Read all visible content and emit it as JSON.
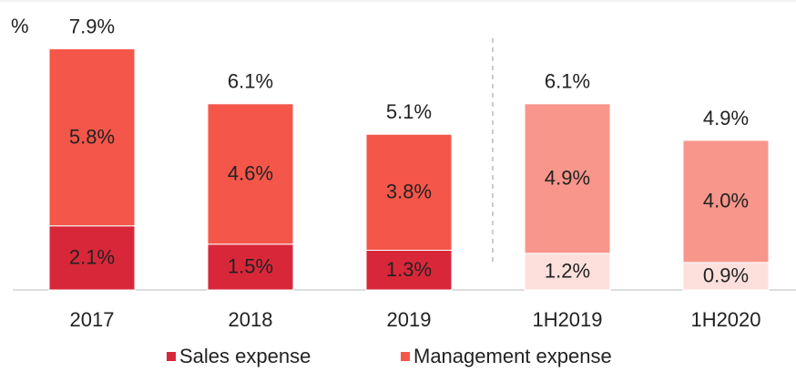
{
  "chart_data": {
    "type": "stacked_bar",
    "unit_label": "%",
    "categories": [
      "2017",
      "2018",
      "2019",
      "1H2019",
      "1H2020"
    ],
    "series": [
      {
        "name": "Sales expense",
        "color": [
          "#d9273a",
          "#d9273a",
          "#d9273a",
          "#fde0dc",
          "#fde0dc"
        ],
        "values": [
          2.1,
          1.5,
          1.3,
          1.2,
          0.9
        ],
        "value_labels": [
          "2.1%",
          "1.5%",
          "1.3%",
          "1.2%",
          "0.9%"
        ]
      },
      {
        "name": "Management expense",
        "color": [
          "#f5564a",
          "#f5564a",
          "#f5564a",
          "#f8968b",
          "#f8968b"
        ],
        "values": [
          5.8,
          4.6,
          3.8,
          4.9,
          4.0
        ],
        "value_labels": [
          "5.8%",
          "4.6%",
          "3.8%",
          "4.9%",
          "4.0%"
        ]
      }
    ],
    "totals": {
      "values": [
        7.9,
        6.1,
        5.1,
        6.1,
        4.9
      ],
      "value_labels": [
        "7.9%",
        "6.1%",
        "5.1%",
        "6.1%",
        "4.9%"
      ]
    },
    "legend_colors": [
      "#d9273a",
      "#f5564a"
    ],
    "ylim": [
      0,
      9.5
    ]
  }
}
